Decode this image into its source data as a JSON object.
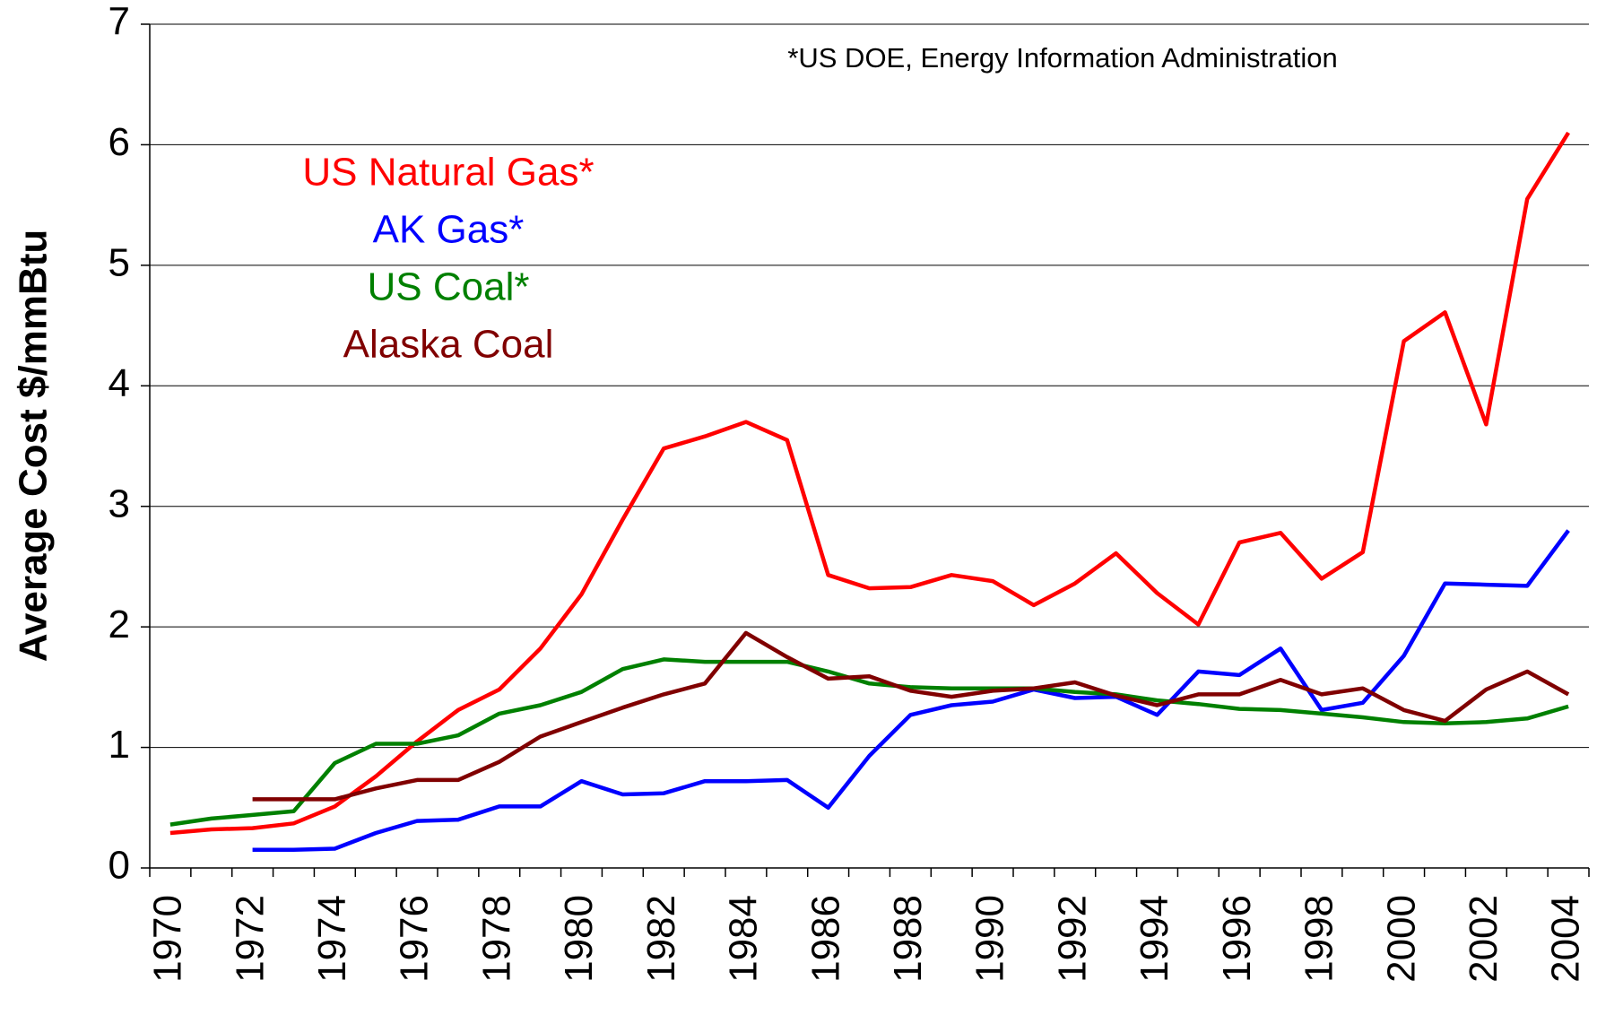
{
  "chart_data": {
    "type": "line",
    "y_label": "Average Cost $/mmBtu",
    "annotation": "*US DOE, Energy Information Administration",
    "categories": [
      "1970",
      null,
      "1972",
      null,
      "1974",
      null,
      "1976",
      null,
      "1978",
      null,
      "1980",
      null,
      "1982",
      null,
      "1984",
      null,
      "1986",
      null,
      "1988",
      null,
      "1990",
      null,
      "1992",
      null,
      "1994",
      null,
      "1996",
      null,
      "1998",
      null,
      "2000",
      null,
      "2002",
      null,
      "2004"
    ],
    "series": [
      {
        "name": "US Natural Gas*",
        "color": "#ff0000",
        "values": [
          0.29,
          0.32,
          0.33,
          0.37,
          0.51,
          0.76,
          1.05,
          1.31,
          1.48,
          1.82,
          2.27,
          2.89,
          3.48,
          3.58,
          3.7,
          3.55,
          2.43,
          2.32,
          2.33,
          2.43,
          2.38,
          2.18,
          2.36,
          2.61,
          2.28,
          2.02,
          2.7,
          2.78,
          2.4,
          2.62,
          4.37,
          4.61,
          3.68,
          5.55,
          6.1
        ]
      },
      {
        "name": "AK Gas*",
        "color": "#0000ff",
        "values": [
          null,
          null,
          0.15,
          0.15,
          0.16,
          0.29,
          0.39,
          0.4,
          0.51,
          0.51,
          0.72,
          0.61,
          0.62,
          0.72,
          0.72,
          0.73,
          0.5,
          0.93,
          1.27,
          1.35,
          1.38,
          1.48,
          1.41,
          1.42,
          1.27,
          1.63,
          1.6,
          1.82,
          1.31,
          1.37,
          1.76,
          2.36,
          2.35,
          2.34,
          2.8
        ]
      },
      {
        "name": "US Coal*",
        "color": "#008000",
        "values": [
          0.36,
          0.41,
          0.44,
          0.47,
          0.87,
          1.03,
          1.03,
          1.1,
          1.28,
          1.35,
          1.46,
          1.65,
          1.73,
          1.71,
          1.71,
          1.71,
          1.63,
          1.53,
          1.5,
          1.49,
          1.49,
          1.49,
          1.46,
          1.44,
          1.39,
          1.36,
          1.32,
          1.31,
          1.28,
          1.25,
          1.21,
          1.2,
          1.21,
          1.24,
          1.34
        ]
      },
      {
        "name": "Alaska Coal",
        "color": "#800000",
        "values": [
          null,
          null,
          0.57,
          0.57,
          0.57,
          0.66,
          0.73,
          0.73,
          0.88,
          1.09,
          1.21,
          1.33,
          1.44,
          1.53,
          1.95,
          1.75,
          1.57,
          1.59,
          1.47,
          1.42,
          1.47,
          1.49,
          1.54,
          1.43,
          1.35,
          1.44,
          1.44,
          1.56,
          1.44,
          1.49,
          1.31,
          1.22,
          1.48,
          1.63,
          1.44
        ]
      }
    ],
    "ylim": [
      0,
      7
    ],
    "yticks": [
      0,
      1,
      2,
      3,
      4,
      5,
      6,
      7
    ],
    "grid": true
  }
}
